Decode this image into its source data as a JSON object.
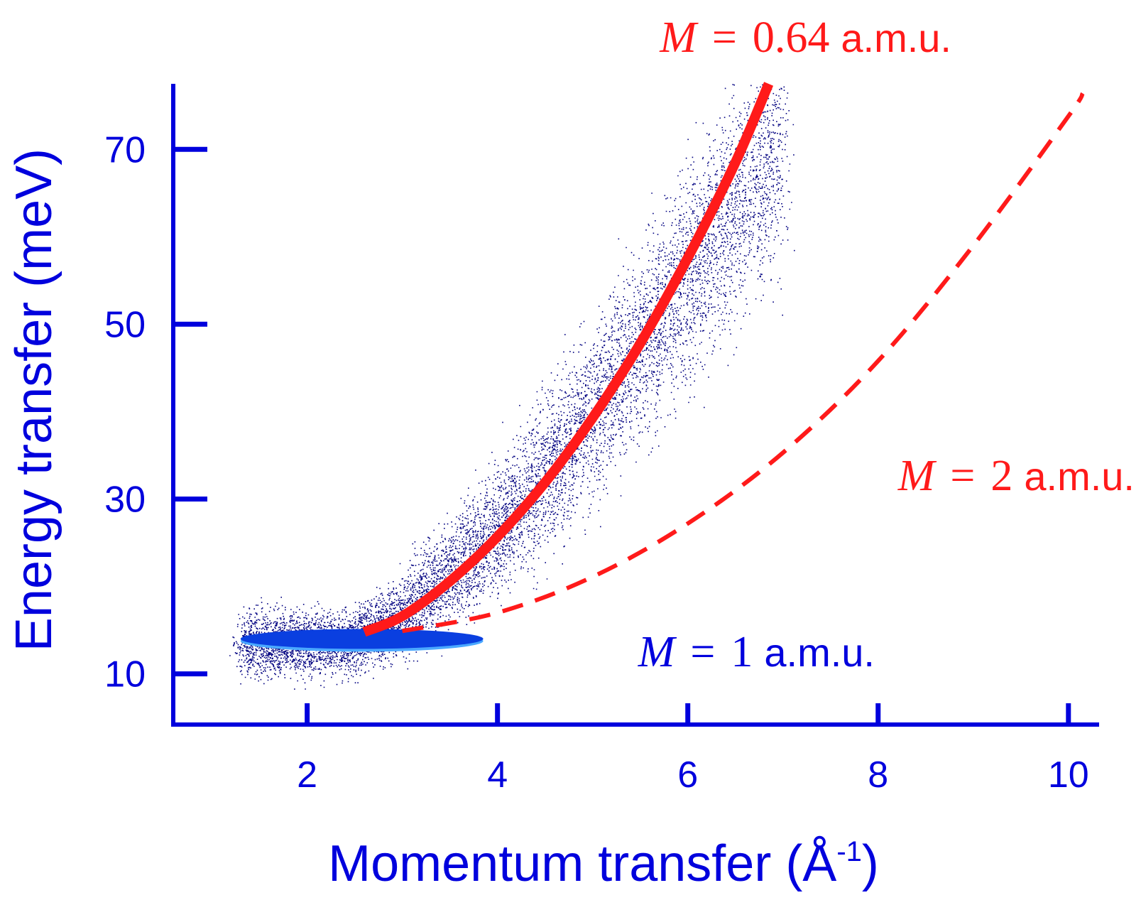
{
  "chart_data": {
    "type": "scatter",
    "title": "",
    "xlabel": "Momentum transfer (Å",
    "xlabel_sup": "-1",
    "xlabel_close": ")",
    "ylabel": "Energy transfer (meV)",
    "xlim": [
      0.6,
      10.3
    ],
    "ylim": [
      4.2,
      77.5
    ],
    "x_ticks": [
      2,
      4,
      6,
      8,
      10
    ],
    "y_ticks": [
      10,
      30,
      50,
      70
    ],
    "grid": false,
    "legend": "none",
    "colors": {
      "axis": "#0000dd",
      "scatter": "#000080",
      "fit": "#ff1a1a",
      "blob": "#0a3fe0"
    },
    "recoil_curves": [
      {
        "mass_symbol": "M",
        "equals": "=",
        "mass_value": "0.64",
        "unit": "a.m.u.",
        "style": "solid",
        "points": [
          [
            2.6,
            14.8
          ],
          [
            3.0,
            16.6
          ],
          [
            3.5,
            20.6
          ],
          [
            4.0,
            25.7
          ],
          [
            4.5,
            31.9
          ],
          [
            5.0,
            39.3
          ],
          [
            5.5,
            47.8
          ],
          [
            6.0,
            57.6
          ],
          [
            6.5,
            68.5
          ],
          [
            6.85,
            77.5
          ]
        ]
      },
      {
        "mass_symbol": "M",
        "equals": "=",
        "mass_value": "2",
        "unit": "a.m.u.",
        "style": "dashed",
        "points": [
          [
            3.0,
            14.9
          ],
          [
            4.0,
            17.0
          ],
          [
            5.0,
            21.1
          ],
          [
            6.0,
            27.2
          ],
          [
            7.0,
            35.3
          ],
          [
            8.0,
            45.8
          ],
          [
            9.0,
            59.0
          ],
          [
            10.0,
            73.8
          ],
          [
            10.15,
            76.4
          ]
        ]
      }
    ],
    "elastic_band": {
      "mass_symbol": "M",
      "equals": "=",
      "mass_value": "1",
      "unit": "a.m.u.",
      "x_range": [
        1.3,
        3.85
      ],
      "y": 14.0
    },
    "scatter_cloud": {
      "centerline": [
        [
          1.3,
          13.5
        ],
        [
          2.5,
          13.5
        ],
        [
          3.0,
          16.8
        ],
        [
          3.5,
          21.5
        ],
        [
          4.0,
          26.5
        ],
        [
          4.5,
          32.5
        ],
        [
          5.0,
          40.0
        ],
        [
          5.5,
          47.5
        ],
        [
          6.0,
          55.5
        ],
        [
          6.5,
          63.5
        ],
        [
          7.0,
          71.0
        ]
      ],
      "spread_meV": 3.5,
      "density": 9000
    }
  }
}
